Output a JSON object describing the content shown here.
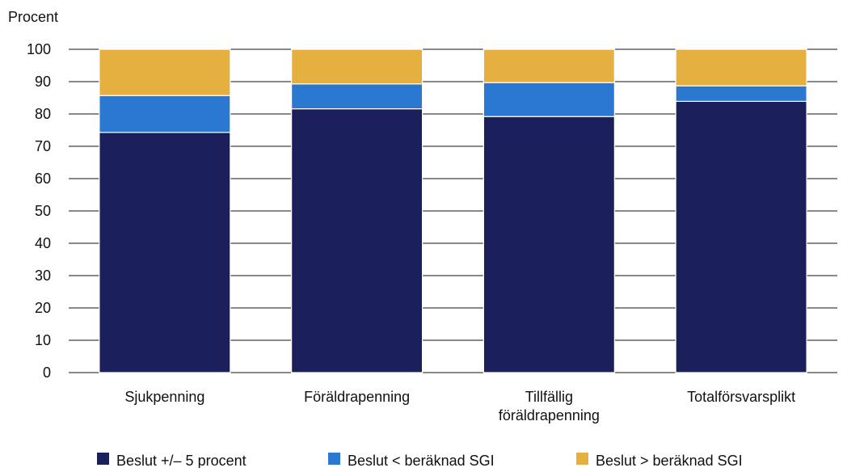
{
  "chart_data": {
    "type": "bar",
    "stacked": true,
    "ylabel": "Procent",
    "xlabel": "",
    "title": "",
    "ylim": [
      0,
      100
    ],
    "yticks": [
      0,
      10,
      20,
      30,
      40,
      50,
      60,
      70,
      80,
      90,
      100
    ],
    "grid": true,
    "legend_position": "bottom",
    "categories": [
      [
        "Sjukpenning"
      ],
      [
        "Föräldrapenning"
      ],
      [
        "Tillfällig",
        "föräldrapenning"
      ],
      [
        "Totalförsvarsplikt"
      ]
    ],
    "series": [
      {
        "name": "Beslut +/– 5 procent",
        "color": "#1b1f5c",
        "values": [
          74.3,
          81.6,
          79.2,
          83.9
        ]
      },
      {
        "name": "Beslut < beräknad SGI",
        "color": "#2b78d0",
        "values": [
          11.4,
          7.7,
          10.5,
          4.8
        ]
      },
      {
        "name": "Beslut > beräknad SGI",
        "color": "#e6b040",
        "values": [
          14.3,
          10.7,
          10.3,
          11.3
        ]
      }
    ]
  }
}
